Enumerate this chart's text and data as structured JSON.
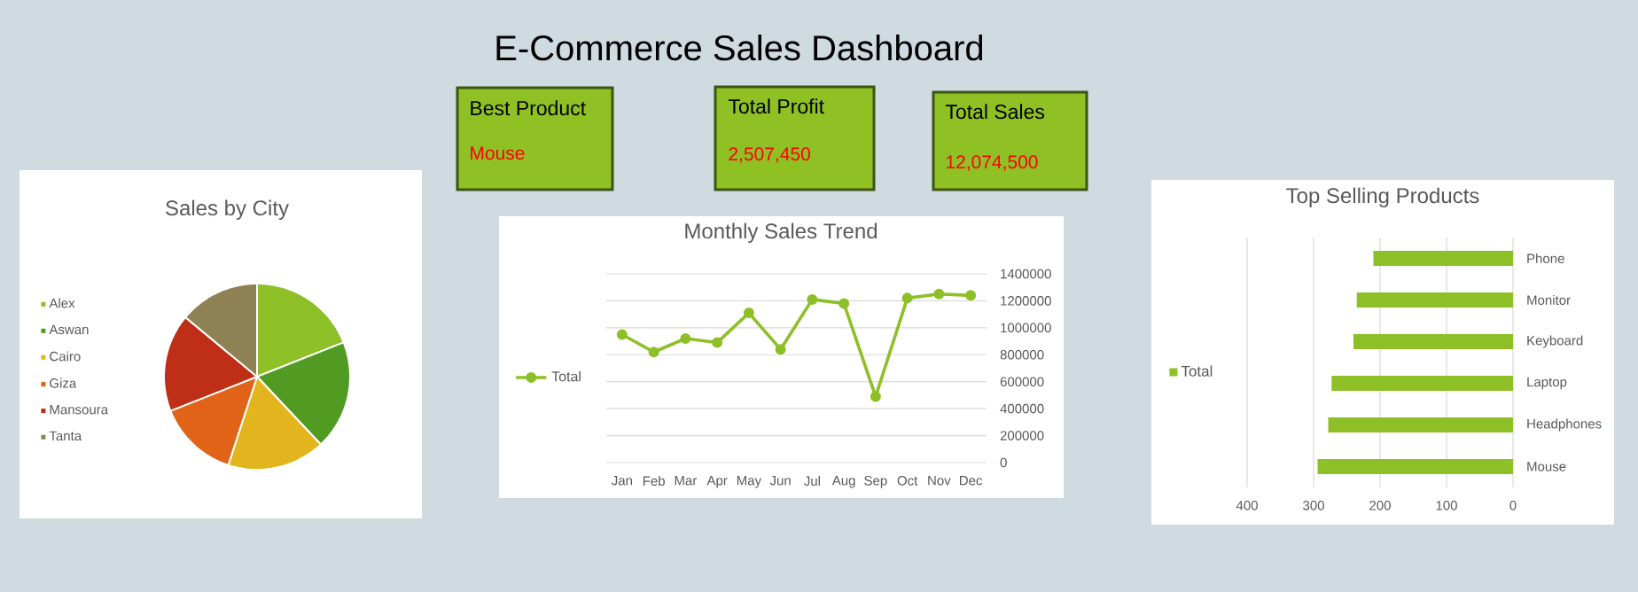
{
  "chart_data": [
    {
      "type": "other",
      "title": "E-Commerce Sales Dashboard"
    },
    {
      "type": "other",
      "title": "Best Product",
      "annotations": [
        "Mouse"
      ]
    },
    {
      "type": "other",
      "title": "Total Profit",
      "annotations": [
        "2,507,450"
      ]
    },
    {
      "type": "other",
      "title": "Total Sales",
      "annotations": [
        "12,074,500"
      ]
    },
    {
      "type": "pie",
      "title": "Sales by City",
      "categories": [
        "Alex",
        "Aswan",
        "Cairo",
        "Giza",
        "Mansoura",
        "Tanta"
      ],
      "values": [
        19,
        19,
        17,
        14,
        17,
        14
      ],
      "colors": [
        "#8dbf27",
        "#519b22",
        "#e2b51e",
        "#e06318",
        "#bf2e17",
        "#8e8153"
      ],
      "legend": "left"
    },
    {
      "type": "line",
      "title": "Monthly Sales Trend",
      "categories": [
        "Jan",
        "Feb",
        "Mar",
        "Apr",
        "May",
        "Jun",
        "Jul",
        "Aug",
        "Sep",
        "Oct",
        "Nov",
        "Dec"
      ],
      "series": [
        {
          "name": "Total",
          "color": "#8dc026",
          "values": [
            950000,
            820000,
            920000,
            890000,
            1110000,
            840000,
            1210000,
            1180000,
            490000,
            1220000,
            1250000,
            1240000
          ]
        }
      ],
      "ylim": [
        0,
        1400000
      ],
      "yticks": [
        0,
        200000,
        400000,
        600000,
        800000,
        1000000,
        1200000,
        1400000
      ],
      "grid": "y",
      "legend": "left",
      "marker": "circle",
      "line_style": "solid"
    },
    {
      "type": "bar",
      "title": "Top Selling Products",
      "orientation": "horizontal",
      "categories": [
        "Phone",
        "Monitor",
        "Keyboard",
        "Laptop",
        "Headphones",
        "Mouse"
      ],
      "series": [
        {
          "name": "Total",
          "color": "#8dc026",
          "values": [
            210,
            235,
            240,
            273,
            278,
            294
          ]
        }
      ],
      "xlim": [
        400,
        0
      ],
      "xticks": [
        400,
        300,
        200,
        100,
        0
      ],
      "grid": "x",
      "legend": "left"
    }
  ]
}
